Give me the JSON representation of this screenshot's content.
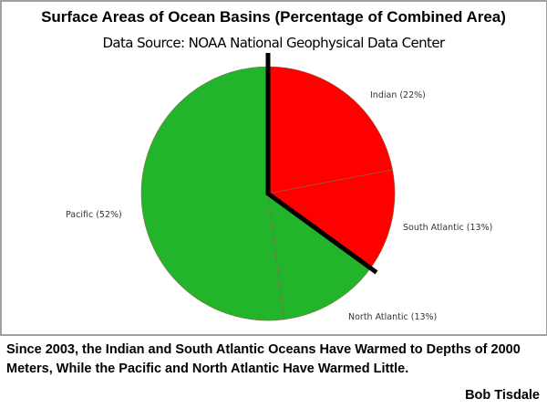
{
  "chart_data": {
    "type": "pie",
    "title": "Surface Areas of Ocean Basins (Percentage of Combined Area)",
    "subtitle": "Data Source: NOAA National Geophysical Data Center",
    "start_angle_deg": 0,
    "direction": "clockwise",
    "slices": [
      {
        "name": "Indian",
        "value": 22,
        "label": "Indian (22%)",
        "color": "#ff0000"
      },
      {
        "name": "South Atlantic",
        "value": 13,
        "label": "South Atlantic (13%)",
        "color": "#ff0000"
      },
      {
        "name": "North Atlantic",
        "value": 13,
        "label": "North Atlantic (13%)",
        "color": "#22b52b"
      },
      {
        "name": "Pacific",
        "value": 52,
        "label": "Pacific (52%)",
        "color": "#22b52b"
      }
    ],
    "divider_color": "#000000"
  },
  "caption": "Since 2003, the Indian and South Atlantic Oceans Have Warmed to Depths of 2000 Meters, While the Pacific and North Atlantic Have Warmed Little.",
  "author": "Bob Tisdale"
}
